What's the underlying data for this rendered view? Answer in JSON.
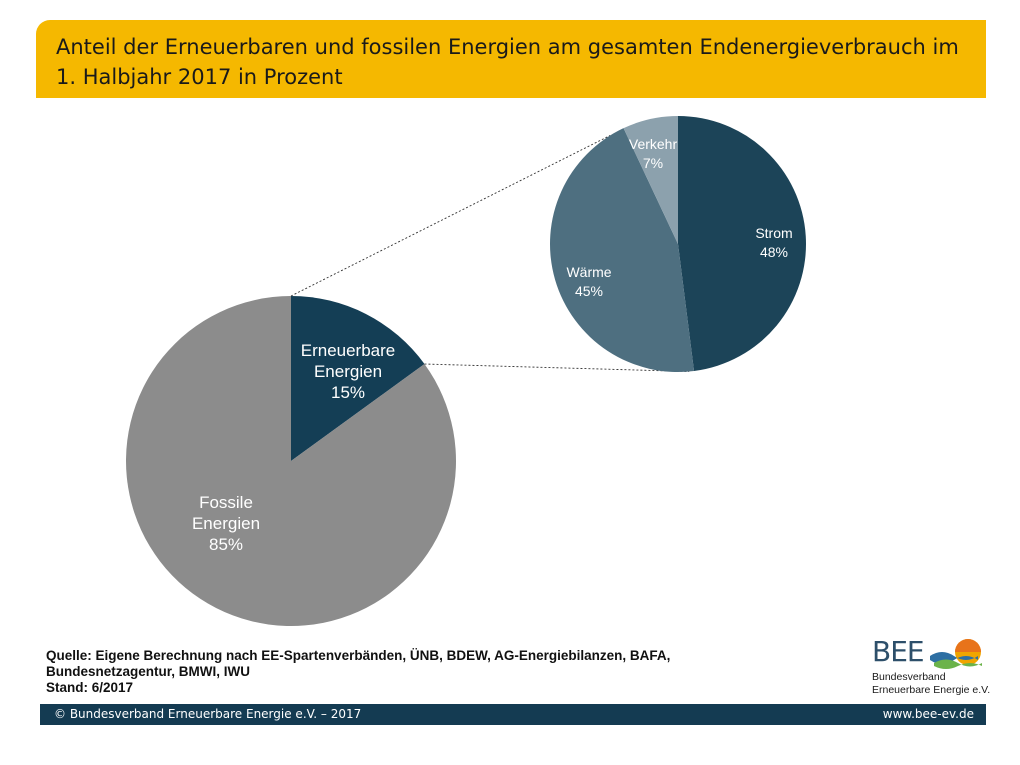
{
  "title": "Anteil der Erneuerbaren und fossilen Energien am gesamten Endenergieverbrauch im 1. Halbjahr 2017 in Prozent",
  "colors": {
    "title_bar": "#f5b800",
    "fossile": "#8c8c8c",
    "erneuerbare": "#143e55",
    "strom": "#1c4458",
    "waerme": "#4e6f80",
    "verkehr": "#8ca1ad",
    "footer": "#143b52"
  },
  "chart_data": [
    {
      "type": "pie",
      "slices": [
        {
          "label_lines": [
            "Erneuerbare",
            "Energien"
          ],
          "value": 15,
          "value_label": "15%",
          "color": "#143e55"
        },
        {
          "label_lines": [
            "Fossile",
            "Energien"
          ],
          "value": 85,
          "value_label": "85%",
          "color": "#8c8c8c"
        }
      ]
    },
    {
      "type": "pie",
      "slices": [
        {
          "label_lines": [
            "Strom"
          ],
          "value": 48,
          "value_label": "48%",
          "color": "#1c4458"
        },
        {
          "label_lines": [
            "Wärme"
          ],
          "value": 45,
          "value_label": "45%",
          "color": "#4e6f80"
        },
        {
          "label_lines": [
            "Verkehr"
          ],
          "value": 7,
          "value_label": "7%",
          "color": "#8ca1ad"
        }
      ]
    }
  ],
  "source": {
    "line1": "Quelle: Eigene Berechnung nach EE-Spartenverbänden, ÜNB, BDEW, AG-Energiebilanzen, BAFA,",
    "line2": "Bundesnetzagentur, BMWI, IWU",
    "line3": "Stand: 6/2017"
  },
  "logo": {
    "text": "BEE",
    "subtitle_line1": "Bundesverband",
    "subtitle_line2": "Erneuerbare Energie e.V."
  },
  "footer": {
    "copyright": "© Bundesverband Erneuerbare Energie e.V. – 2017",
    "url": "www.bee-ev.de"
  }
}
